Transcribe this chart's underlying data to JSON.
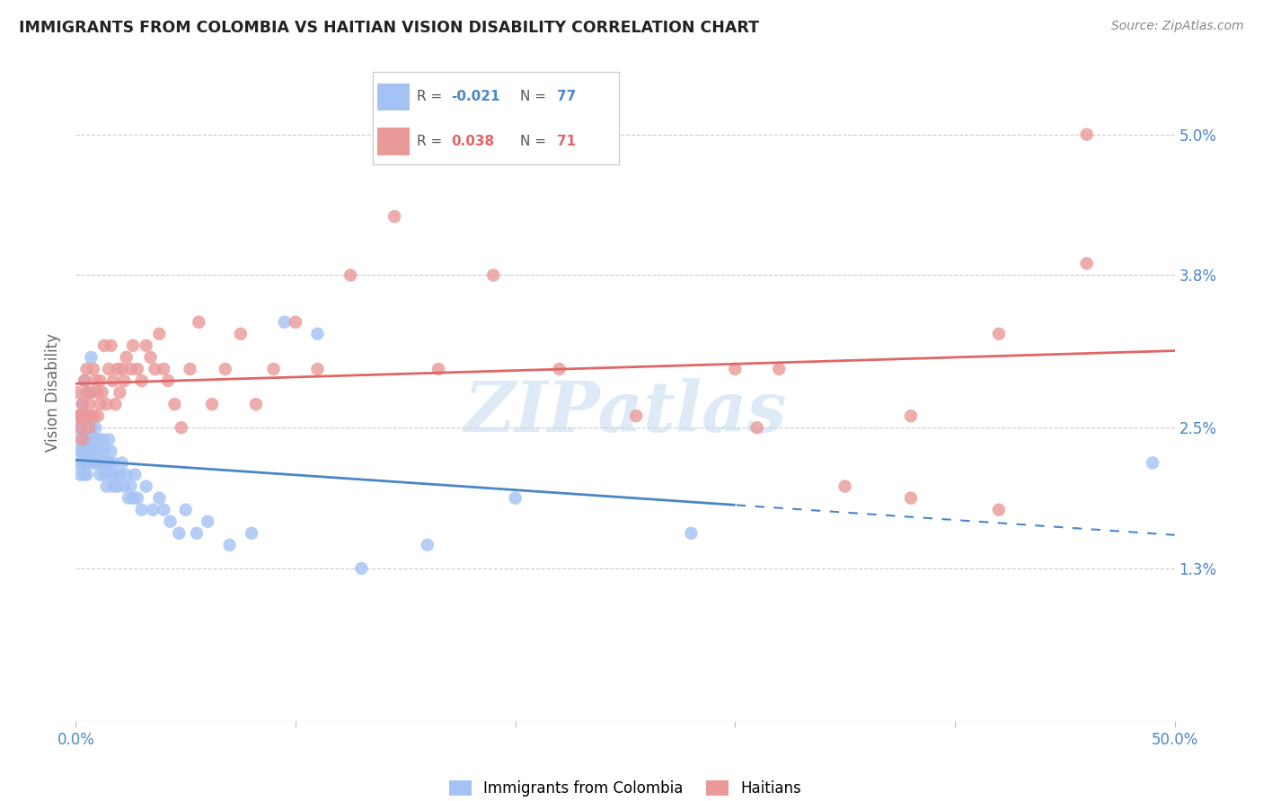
{
  "title": "IMMIGRANTS FROM COLOMBIA VS HAITIAN VISION DISABILITY CORRELATION CHART",
  "source": "Source: ZipAtlas.com",
  "ylabel": "Vision Disability",
  "xlim": [
    0.0,
    0.5
  ],
  "ylim": [
    0.0,
    0.056
  ],
  "watermark": "ZIPatlas",
  "color_colombia": "#a4c2f4",
  "color_haiti": "#ea9999",
  "color_colombia_line": "#4a86c8",
  "color_haiti_line": "#e06666",
  "background_color": "#ffffff",
  "colombia_x": [
    0.001,
    0.001,
    0.002,
    0.002,
    0.002,
    0.002,
    0.003,
    0.003,
    0.003,
    0.003,
    0.004,
    0.004,
    0.004,
    0.004,
    0.005,
    0.005,
    0.005,
    0.005,
    0.006,
    0.006,
    0.006,
    0.006,
    0.007,
    0.007,
    0.007,
    0.008,
    0.008,
    0.008,
    0.009,
    0.009,
    0.01,
    0.01,
    0.01,
    0.011,
    0.011,
    0.012,
    0.012,
    0.013,
    0.013,
    0.014,
    0.014,
    0.015,
    0.015,
    0.016,
    0.016,
    0.017,
    0.017,
    0.018,
    0.019,
    0.02,
    0.021,
    0.022,
    0.023,
    0.024,
    0.025,
    0.026,
    0.027,
    0.028,
    0.03,
    0.032,
    0.035,
    0.038,
    0.04,
    0.043,
    0.047,
    0.05,
    0.055,
    0.06,
    0.07,
    0.08,
    0.095,
    0.11,
    0.13,
    0.16,
    0.2,
    0.28,
    0.49
  ],
  "colombia_y": [
    0.024,
    0.022,
    0.023,
    0.025,
    0.021,
    0.026,
    0.022,
    0.025,
    0.023,
    0.027,
    0.021,
    0.024,
    0.022,
    0.029,
    0.022,
    0.024,
    0.026,
    0.021,
    0.023,
    0.025,
    0.022,
    0.028,
    0.023,
    0.025,
    0.031,
    0.022,
    0.024,
    0.023,
    0.022,
    0.025,
    0.022,
    0.024,
    0.022,
    0.023,
    0.021,
    0.022,
    0.024,
    0.021,
    0.023,
    0.022,
    0.02,
    0.022,
    0.024,
    0.021,
    0.023,
    0.02,
    0.022,
    0.021,
    0.02,
    0.021,
    0.022,
    0.02,
    0.021,
    0.019,
    0.02,
    0.019,
    0.021,
    0.019,
    0.018,
    0.02,
    0.018,
    0.019,
    0.018,
    0.017,
    0.016,
    0.018,
    0.016,
    0.017,
    0.015,
    0.016,
    0.034,
    0.033,
    0.013,
    0.015,
    0.019,
    0.016,
    0.022
  ],
  "haiti_x": [
    0.001,
    0.001,
    0.002,
    0.002,
    0.003,
    0.003,
    0.003,
    0.004,
    0.004,
    0.005,
    0.005,
    0.006,
    0.006,
    0.007,
    0.007,
    0.008,
    0.008,
    0.009,
    0.01,
    0.01,
    0.011,
    0.011,
    0.012,
    0.013,
    0.014,
    0.015,
    0.016,
    0.017,
    0.018,
    0.019,
    0.02,
    0.021,
    0.022,
    0.023,
    0.025,
    0.026,
    0.028,
    0.03,
    0.032,
    0.034,
    0.036,
    0.038,
    0.04,
    0.042,
    0.045,
    0.048,
    0.052,
    0.056,
    0.062,
    0.068,
    0.075,
    0.082,
    0.09,
    0.1,
    0.11,
    0.125,
    0.145,
    0.165,
    0.19,
    0.22,
    0.255,
    0.31,
    0.35,
    0.3,
    0.32,
    0.38,
    0.42,
    0.46,
    0.38,
    0.42,
    0.46
  ],
  "haiti_y": [
    0.026,
    0.028,
    0.025,
    0.026,
    0.024,
    0.027,
    0.026,
    0.029,
    0.026,
    0.028,
    0.03,
    0.025,
    0.027,
    0.026,
    0.028,
    0.03,
    0.026,
    0.029,
    0.026,
    0.028,
    0.027,
    0.029,
    0.028,
    0.032,
    0.027,
    0.03,
    0.032,
    0.029,
    0.027,
    0.03,
    0.028,
    0.03,
    0.029,
    0.031,
    0.03,
    0.032,
    0.03,
    0.029,
    0.032,
    0.031,
    0.03,
    0.033,
    0.03,
    0.029,
    0.027,
    0.025,
    0.03,
    0.034,
    0.027,
    0.03,
    0.033,
    0.027,
    0.03,
    0.034,
    0.03,
    0.038,
    0.043,
    0.03,
    0.038,
    0.03,
    0.026,
    0.025,
    0.02,
    0.03,
    0.03,
    0.026,
    0.033,
    0.039,
    0.019,
    0.018,
    0.05
  ],
  "ytick_vals": [
    0.0,
    0.013,
    0.025,
    0.038,
    0.05
  ],
  "ytick_labels": [
    "",
    "1.3%",
    "2.5%",
    "3.8%",
    "5.0%"
  ]
}
